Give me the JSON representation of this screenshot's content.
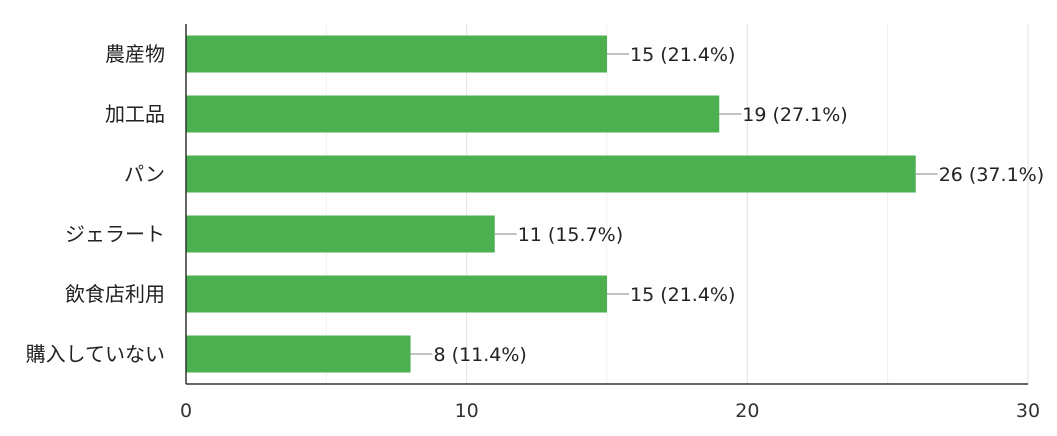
{
  "chart_data": {
    "type": "bar",
    "orientation": "horizontal",
    "categories": [
      "農産物",
      "加工品",
      "パン",
      "ジェラート",
      "飲食店利用",
      "購入していない"
    ],
    "values": [
      15,
      19,
      26,
      11,
      15,
      8
    ],
    "percentages": [
      "21.4%",
      "27.1%",
      "37.1%",
      "15.7%",
      "21.4%",
      "11.4%"
    ],
    "data_labels": [
      "15 (21.4%)",
      "19 (27.1%)",
      "26 (37.1%)",
      "11 (15.7%)",
      "15 (21.4%)",
      "8 (11.4%)"
    ],
    "x_ticks": [
      0,
      10,
      20,
      30
    ],
    "xlim": [
      0,
      30
    ],
    "grid": true,
    "bar_color": "#4caf50",
    "title": "",
    "xlabel": "",
    "ylabel": ""
  }
}
